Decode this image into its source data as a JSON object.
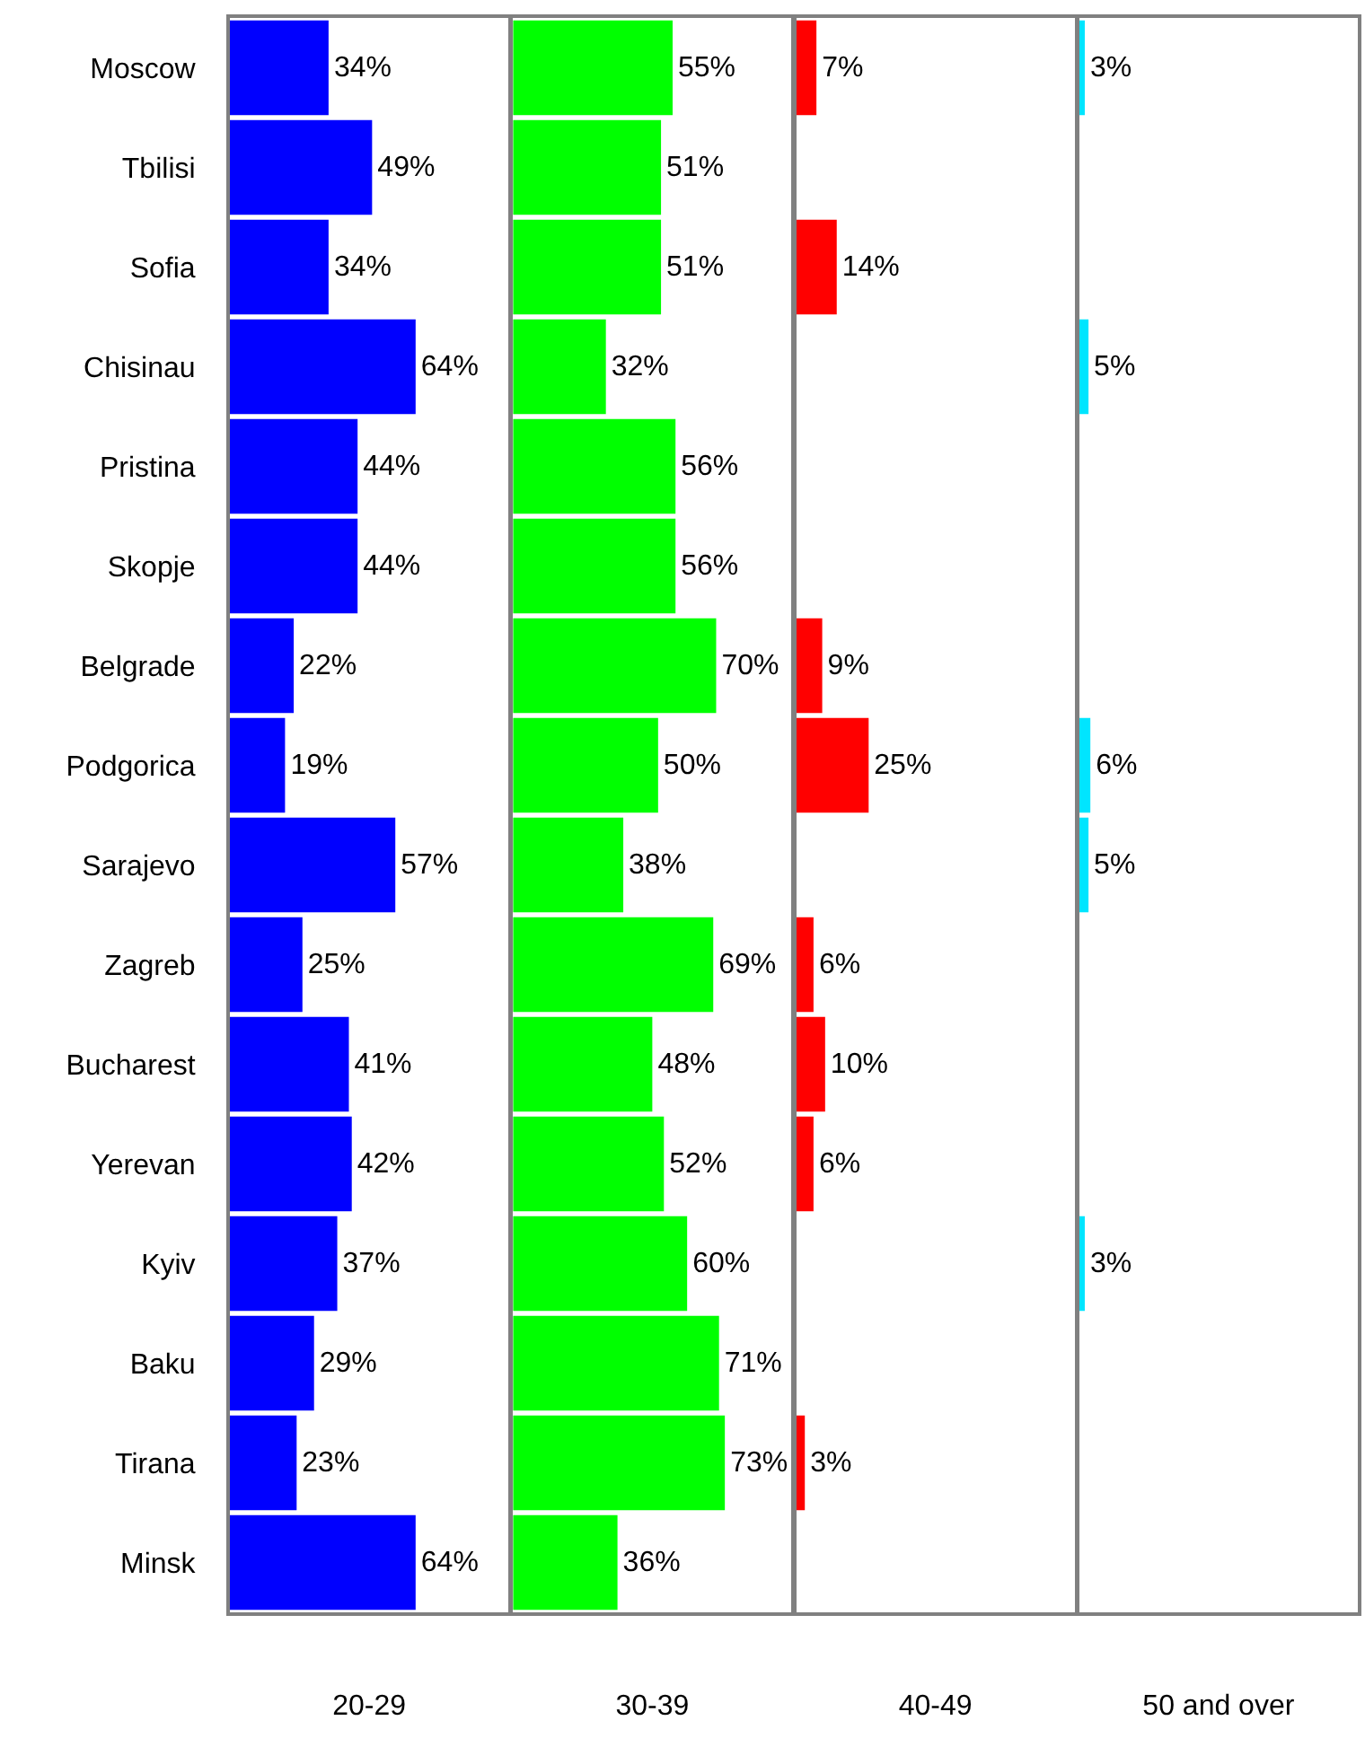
{
  "chart_data": [
    {
      "type": "bar",
      "orientation": "horizontal",
      "xlabel": "20-29",
      "categories": [
        "Moscow",
        "Tbilisi",
        "Sofia",
        "Chisinau",
        "Pristina",
        "Skopje",
        "Belgrade",
        "Podgorica",
        "Sarajevo",
        "Zagreb",
        "Bucharest",
        "Yerevan",
        "Kyiv",
        "Baku",
        "Tirana",
        "Minsk"
      ],
      "values": [
        34,
        49,
        34,
        64,
        44,
        44,
        22,
        19,
        57,
        25,
        41,
        42,
        37,
        29,
        23,
        64
      ],
      "value_labels": [
        "34%",
        "49%",
        "34%",
        "64%",
        "44%",
        "44%",
        "22%",
        "19%",
        "57%",
        "25%",
        "41%",
        "42%",
        "37%",
        "29%",
        "23%",
        "64%"
      ],
      "color": "#0000ff",
      "xlim": [
        0,
        96
      ],
      "tick_labels": "y"
    },
    {
      "type": "bar",
      "orientation": "horizontal",
      "xlabel": "30-39",
      "categories": [
        "Moscow",
        "Tbilisi",
        "Sofia",
        "Chisinau",
        "Pristina",
        "Skopje",
        "Belgrade",
        "Podgorica",
        "Sarajevo",
        "Zagreb",
        "Bucharest",
        "Yerevan",
        "Kyiv",
        "Baku",
        "Tirana",
        "Minsk"
      ],
      "values": [
        55,
        51,
        51,
        32,
        56,
        56,
        70,
        50,
        38,
        69,
        48,
        52,
        60,
        71,
        73,
        36
      ],
      "value_labels": [
        "55%",
        "51%",
        "51%",
        "32%",
        "56%",
        "56%",
        "70%",
        "50%",
        "38%",
        "69%",
        "48%",
        "52%",
        "60%",
        "71%",
        "73%",
        "36%"
      ],
      "color": "#00ff00",
      "xlim": [
        0,
        96
      ],
      "tick_labels": false
    },
    {
      "type": "bar",
      "orientation": "horizontal",
      "xlabel": "40-49",
      "categories": [
        "Moscow",
        "Tbilisi",
        "Sofia",
        "Chisinau",
        "Pristina",
        "Skopje",
        "Belgrade",
        "Podgorica",
        "Sarajevo",
        "Zagreb",
        "Bucharest",
        "Yerevan",
        "Kyiv",
        "Baku",
        "Tirana",
        "Minsk"
      ],
      "values": [
        7,
        null,
        14,
        null,
        null,
        null,
        9,
        25,
        null,
        6,
        10,
        6,
        null,
        null,
        3,
        null
      ],
      "value_labels": [
        "7%",
        null,
        "14%",
        null,
        null,
        null,
        "9%",
        "25%",
        null,
        "6%",
        "10%",
        "6%",
        null,
        null,
        "3%",
        null
      ],
      "color": "#ff0000",
      "xlim": [
        0,
        96
      ],
      "tick_labels": false
    },
    {
      "type": "bar",
      "orientation": "horizontal",
      "xlabel": "50 and over",
      "categories": [
        "Moscow",
        "Tbilisi",
        "Sofia",
        "Chisinau",
        "Pristina",
        "Skopje",
        "Belgrade",
        "Podgorica",
        "Sarajevo",
        "Zagreb",
        "Bucharest",
        "Yerevan",
        "Kyiv",
        "Baku",
        "Tirana",
        "Minsk"
      ],
      "values": [
        3,
        null,
        null,
        5,
        null,
        null,
        null,
        6,
        5,
        null,
        null,
        null,
        3,
        null,
        null,
        null
      ],
      "value_labels": [
        "3%",
        null,
        null,
        "5%",
        null,
        null,
        null,
        "6%",
        "5%",
        null,
        null,
        null,
        "3%",
        null,
        null,
        null
      ],
      "color": "#00e5ff",
      "xlim": [
        0,
        150
      ],
      "tick_labels": false
    }
  ]
}
